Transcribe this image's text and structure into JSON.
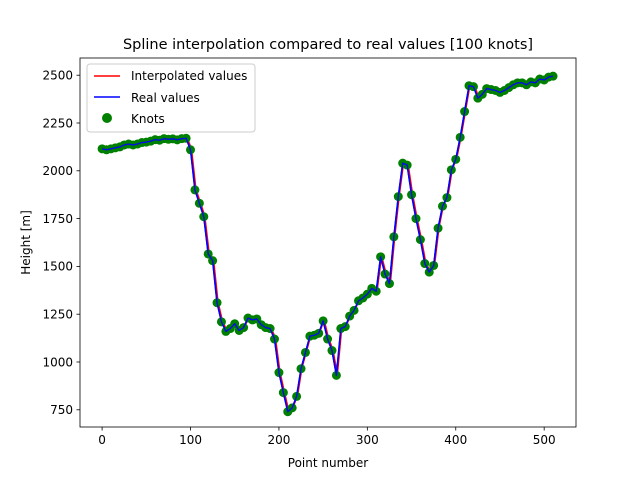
{
  "colors": {
    "interpolated": "#ff0000",
    "real": "#0000ff",
    "knots": "#008000"
  },
  "chart_data": {
    "type": "line",
    "title": "Spline interpolation compared to real values [100 knots]",
    "xlabel": "Point number",
    "ylabel": "Height [m]",
    "xlim": [
      -25,
      536
    ],
    "ylim": [
      660,
      2590
    ],
    "xticks": [
      0,
      100,
      200,
      300,
      400,
      500
    ],
    "yticks": [
      750,
      1000,
      1250,
      1500,
      1750,
      2000,
      2250,
      2500
    ],
    "grid": false,
    "legend_position": "top-left",
    "series": [
      {
        "name": "Interpolated values",
        "type": "line",
        "color": "#ff0000"
      },
      {
        "name": "Real values",
        "type": "line",
        "color": "#0000ff"
      },
      {
        "name": "Knots",
        "type": "scatter",
        "color": "#008000"
      }
    ],
    "points": [
      [
        0,
        2115
      ],
      [
        5,
        2110
      ],
      [
        10,
        2115
      ],
      [
        15,
        2120
      ],
      [
        20,
        2125
      ],
      [
        25,
        2135
      ],
      [
        30,
        2140
      ],
      [
        35,
        2135
      ],
      [
        40,
        2140
      ],
      [
        45,
        2148
      ],
      [
        50,
        2150
      ],
      [
        55,
        2155
      ],
      [
        60,
        2163
      ],
      [
        65,
        2160
      ],
      [
        70,
        2168
      ],
      [
        75,
        2165
      ],
      [
        80,
        2167
      ],
      [
        85,
        2162
      ],
      [
        90,
        2168
      ],
      [
        95,
        2170
      ],
      [
        100,
        2110
      ],
      [
        105,
        1900
      ],
      [
        110,
        1830
      ],
      [
        115,
        1760
      ],
      [
        120,
        1565
      ],
      [
        125,
        1530
      ],
      [
        130,
        1310
      ],
      [
        135,
        1210
      ],
      [
        140,
        1160
      ],
      [
        145,
        1175
      ],
      [
        150,
        1200
      ],
      [
        155,
        1165
      ],
      [
        160,
        1180
      ],
      [
        165,
        1230
      ],
      [
        170,
        1220
      ],
      [
        175,
        1225
      ],
      [
        180,
        1195
      ],
      [
        185,
        1180
      ],
      [
        190,
        1175
      ],
      [
        195,
        1120
      ],
      [
        200,
        945
      ],
      [
        205,
        840
      ],
      [
        210,
        740
      ],
      [
        215,
        760
      ],
      [
        220,
        820
      ],
      [
        225,
        965
      ],
      [
        230,
        1050
      ],
      [
        235,
        1135
      ],
      [
        240,
        1140
      ],
      [
        245,
        1150
      ],
      [
        250,
        1215
      ],
      [
        255,
        1120
      ],
      [
        260,
        1060
      ],
      [
        265,
        930
      ],
      [
        270,
        1175
      ],
      [
        275,
        1185
      ],
      [
        280,
        1240
      ],
      [
        285,
        1270
      ],
      [
        290,
        1320
      ],
      [
        295,
        1335
      ],
      [
        300,
        1355
      ],
      [
        305,
        1385
      ],
      [
        310,
        1370
      ],
      [
        315,
        1550
      ],
      [
        320,
        1460
      ],
      [
        325,
        1410
      ],
      [
        330,
        1655
      ],
      [
        335,
        1865
      ],
      [
        340,
        2040
      ],
      [
        345,
        2030
      ],
      [
        350,
        1875
      ],
      [
        355,
        1750
      ],
      [
        360,
        1640
      ],
      [
        365,
        1515
      ],
      [
        370,
        1470
      ],
      [
        375,
        1505
      ],
      [
        380,
        1700
      ],
      [
        385,
        1815
      ],
      [
        390,
        1860
      ],
      [
        395,
        2005
      ],
      [
        400,
        2060
      ],
      [
        405,
        2175
      ],
      [
        410,
        2310
      ],
      [
        415,
        2445
      ],
      [
        420,
        2440
      ],
      [
        425,
        2380
      ],
      [
        430,
        2400
      ],
      [
        435,
        2430
      ],
      [
        440,
        2425
      ],
      [
        445,
        2420
      ],
      [
        450,
        2410
      ],
      [
        455,
        2420
      ],
      [
        460,
        2435
      ],
      [
        465,
        2450
      ],
      [
        470,
        2460
      ],
      [
        475,
        2460
      ],
      [
        480,
        2450
      ],
      [
        485,
        2465
      ],
      [
        490,
        2460
      ],
      [
        495,
        2480
      ],
      [
        500,
        2475
      ],
      [
        505,
        2490
      ],
      [
        510,
        2495
      ]
    ]
  }
}
